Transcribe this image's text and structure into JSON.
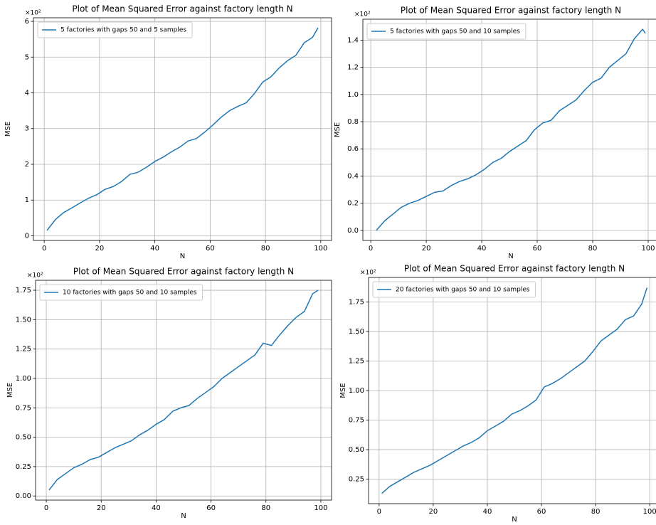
{
  "chart_data": [
    {
      "type": "line",
      "title": "Plot of Mean Squared Error against factory length N",
      "xlabel": "N",
      "ylabel": "MSE",
      "y_offset_label": "×10²",
      "grid": true,
      "legend": "upper left",
      "xlim": [
        -3.9,
        103.9
      ],
      "xticks": [
        0,
        20,
        40,
        60,
        80,
        100
      ],
      "ylim": [
        -0.13,
        6.1
      ],
      "yticks": [
        0,
        1,
        2,
        3,
        4,
        5,
        6
      ],
      "x": [
        1,
        4,
        7,
        10,
        13,
        16,
        19,
        22,
        25,
        28,
        31,
        34,
        37,
        40,
        43,
        46,
        49,
        52,
        55,
        58,
        61,
        64,
        67,
        70,
        73,
        76,
        79,
        82,
        85,
        88,
        91,
        94,
        97,
        99
      ],
      "series": [
        {
          "name": "5 factories with gaps 50 and 5 samples",
          "color": "#1f77b4",
          "values": [
            0.15,
            0.45,
            0.65,
            0.78,
            0.92,
            1.05,
            1.15,
            1.3,
            1.38,
            1.52,
            1.72,
            1.78,
            1.92,
            2.08,
            2.2,
            2.35,
            2.48,
            2.65,
            2.72,
            2.9,
            3.1,
            3.32,
            3.5,
            3.62,
            3.72,
            3.98,
            4.3,
            4.45,
            4.7,
            4.9,
            5.05,
            5.4,
            5.55,
            5.82
          ]
        }
      ]
    },
    {
      "type": "line",
      "title": "Plot of Mean Squared Error against factory length N",
      "xlabel": "N",
      "ylabel": "MSE",
      "y_offset_label": "×10²",
      "grid": true,
      "legend": "upper left",
      "xlim": [
        -2.85,
        103.85
      ],
      "xticks": [
        0,
        20,
        40,
        60,
        80,
        100
      ],
      "ylim": [
        -0.074,
        1.554
      ],
      "yticks": [
        {
          "value": 0,
          "label": "0.0"
        },
        0.2,
        0.4,
        0.6,
        0.8,
        {
          "value": 1,
          "label": "1.0"
        },
        1.2,
        1.4
      ],
      "x": [
        2,
        5,
        8,
        11,
        14,
        17,
        20,
        23,
        26,
        29,
        32,
        35,
        38,
        41,
        44,
        47,
        50,
        53,
        56,
        59,
        62,
        65,
        68,
        71,
        74,
        77,
        80,
        83,
        86,
        89,
        92,
        95,
        98,
        99
      ],
      "series": [
        {
          "name": "5 factories with gaps 50 and 10 samples",
          "color": "#1f77b4",
          "values": [
            0.0,
            0.07,
            0.12,
            0.17,
            0.2,
            0.22,
            0.25,
            0.28,
            0.29,
            0.33,
            0.36,
            0.38,
            0.41,
            0.45,
            0.5,
            0.53,
            0.58,
            0.62,
            0.66,
            0.74,
            0.79,
            0.81,
            0.88,
            0.92,
            0.96,
            1.03,
            1.09,
            1.12,
            1.2,
            1.25,
            1.3,
            1.41,
            1.48,
            1.45
          ]
        }
      ]
    },
    {
      "type": "line",
      "title": "Plot of Mean Squared Error against factory length N",
      "xlabel": "N",
      "ylabel": "MSE",
      "y_offset_label": "×10²",
      "grid": true,
      "legend": "upper left",
      "xlim": [
        -3.9,
        103.9
      ],
      "xticks": [
        0,
        20,
        40,
        60,
        80,
        100
      ],
      "ylim": [
        -0.035,
        1.835
      ],
      "yticks": [
        {
          "value": 0,
          "label": "0.00"
        },
        0.25,
        {
          "value": 0.5,
          "label": "0.50"
        },
        0.75,
        {
          "value": 1,
          "label": "1.00"
        },
        1.25,
        {
          "value": 1.5,
          "label": "1.50"
        },
        1.75
      ],
      "x": [
        1,
        4,
        7,
        10,
        13,
        16,
        19,
        22,
        25,
        28,
        31,
        34,
        37,
        40,
        43,
        46,
        49,
        52,
        55,
        58,
        61,
        64,
        67,
        70,
        73,
        76,
        79,
        82,
        85,
        88,
        91,
        94,
        97,
        99
      ],
      "series": [
        {
          "name": "10 factories with gaps 50 and 10 samples",
          "color": "#1f77b4",
          "values": [
            0.05,
            0.14,
            0.19,
            0.24,
            0.27,
            0.31,
            0.33,
            0.37,
            0.41,
            0.44,
            0.47,
            0.52,
            0.56,
            0.61,
            0.65,
            0.72,
            0.75,
            0.77,
            0.83,
            0.88,
            0.93,
            1.0,
            1.05,
            1.1,
            1.15,
            1.2,
            1.3,
            1.28,
            1.37,
            1.45,
            1.52,
            1.57,
            1.72,
            1.75
          ]
        }
      ]
    },
    {
      "type": "line",
      "title": "Plot of Mean Squared Error against factory length N",
      "xlabel": "N",
      "ylabel": "MSE",
      "y_offset_label": "×10²",
      "grid": true,
      "legend": "upper left",
      "xlim": [
        -3.9,
        103.9
      ],
      "xticks": [
        0,
        20,
        40,
        60,
        80,
        100
      ],
      "ylim": [
        0.043,
        1.957
      ],
      "yticks": [
        0.25,
        {
          "value": 0.5,
          "label": "0.50"
        },
        0.75,
        {
          "value": 1,
          "label": "1.00"
        },
        1.25,
        {
          "value": 1.5,
          "label": "1.50"
        },
        1.75
      ],
      "x": [
        1,
        4,
        7,
        10,
        13,
        16,
        19,
        22,
        25,
        28,
        31,
        34,
        37,
        40,
        43,
        46,
        49,
        52,
        55,
        58,
        61,
        64,
        67,
        70,
        73,
        76,
        79,
        82,
        85,
        88,
        91,
        94,
        97,
        99
      ],
      "series": [
        {
          "name": "20 factories with gaps 50 and 10 samples",
          "color": "#1f77b4",
          "values": [
            0.13,
            0.19,
            0.23,
            0.27,
            0.31,
            0.34,
            0.37,
            0.41,
            0.45,
            0.49,
            0.53,
            0.56,
            0.6,
            0.66,
            0.7,
            0.74,
            0.8,
            0.83,
            0.87,
            0.92,
            1.03,
            1.06,
            1.1,
            1.15,
            1.2,
            1.25,
            1.33,
            1.42,
            1.47,
            1.52,
            1.6,
            1.63,
            1.73,
            1.87
          ]
        }
      ]
    }
  ]
}
